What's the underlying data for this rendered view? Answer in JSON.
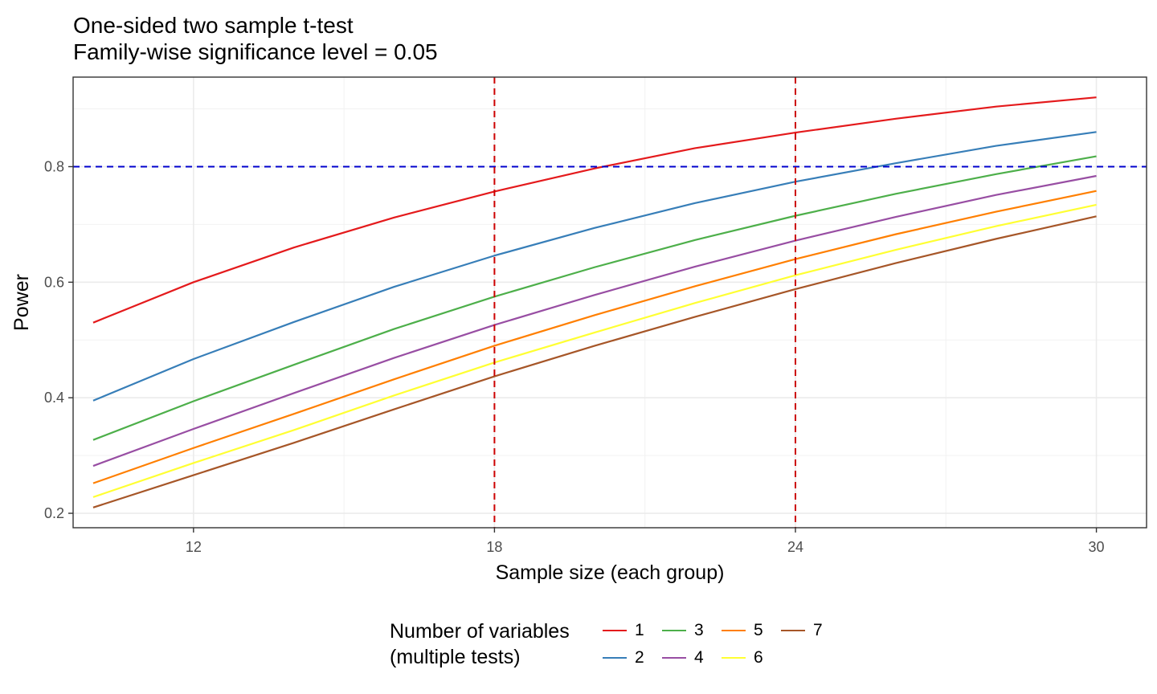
{
  "chart_data": {
    "type": "line",
    "title": "One-sided two sample t-test",
    "subtitle": "Family-wise significance level = 0.05",
    "xlabel": "Sample size (each group)",
    "ylabel": "Power",
    "xlim": [
      9.6,
      31.0
    ],
    "ylim": [
      0.175,
      0.955
    ],
    "xticks": [
      12,
      18,
      24,
      30
    ],
    "yticks": [
      0.2,
      0.4,
      0.6,
      0.8
    ],
    "grid": true,
    "x": [
      10,
      12,
      14,
      16,
      18,
      20,
      22,
      24,
      26,
      28,
      30
    ],
    "series": [
      {
        "name": "1",
        "color": "#E41A1C",
        "values": [
          0.53,
          0.6,
          0.66,
          0.712,
          0.757,
          0.797,
          0.832,
          0.859,
          0.883,
          0.904,
          0.92
        ]
      },
      {
        "name": "2",
        "color": "#377EB8",
        "values": [
          0.395,
          0.467,
          0.531,
          0.592,
          0.646,
          0.694,
          0.737,
          0.774,
          0.806,
          0.836,
          0.86
        ]
      },
      {
        "name": "3",
        "color": "#4DAF4A",
        "values": [
          0.327,
          0.394,
          0.457,
          0.519,
          0.575,
          0.626,
          0.673,
          0.715,
          0.753,
          0.787,
          0.818
        ]
      },
      {
        "name": "4",
        "color": "#984EA3",
        "values": [
          0.282,
          0.346,
          0.408,
          0.469,
          0.526,
          0.578,
          0.627,
          0.672,
          0.713,
          0.751,
          0.784
        ]
      },
      {
        "name": "5",
        "color": "#FF7F00",
        "values": [
          0.252,
          0.313,
          0.372,
          0.432,
          0.49,
          0.543,
          0.593,
          0.64,
          0.683,
          0.722,
          0.758
        ]
      },
      {
        "name": "6",
        "color": "#FFFF33",
        "values": [
          0.228,
          0.287,
          0.344,
          0.404,
          0.461,
          0.513,
          0.564,
          0.612,
          0.656,
          0.697,
          0.734
        ]
      },
      {
        "name": "7",
        "color": "#A65628",
        "values": [
          0.21,
          0.266,
          0.322,
          0.38,
          0.437,
          0.49,
          0.54,
          0.588,
          0.633,
          0.675,
          0.714
        ]
      }
    ],
    "reference_lines": [
      {
        "axis": "y",
        "value": 0.8,
        "color": "#0000CC",
        "style": "dashed"
      },
      {
        "axis": "x",
        "value": 18,
        "color": "#CC0000",
        "style": "dashed"
      },
      {
        "axis": "x",
        "value": 24,
        "color": "#CC0000",
        "style": "dashed"
      }
    ],
    "legend": {
      "title_line1": "Number of variables",
      "title_line2": "(multiple tests)",
      "placement": "bottom"
    }
  }
}
